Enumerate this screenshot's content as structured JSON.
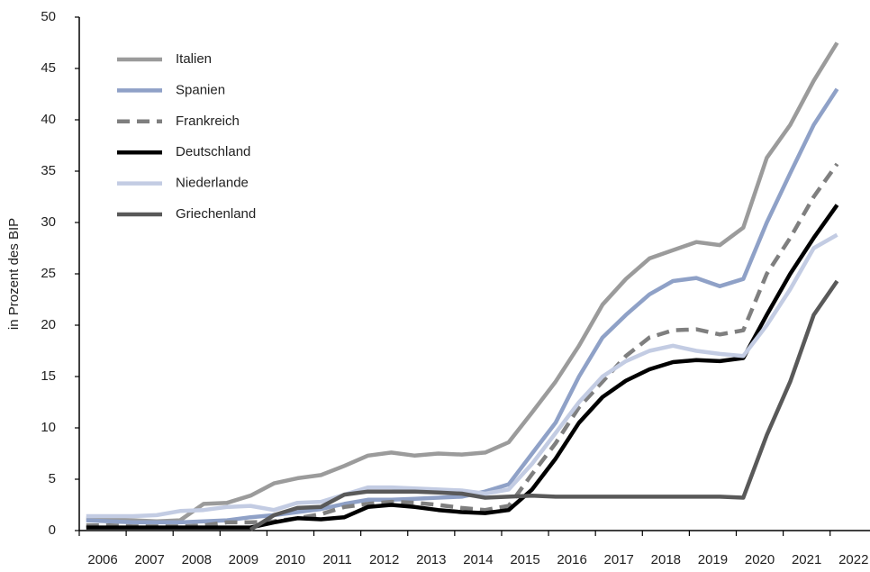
{
  "chart_data": {
    "type": "line",
    "y_label": "in Prozent des BIP",
    "x": [
      2006.15,
      2006.65,
      2007.15,
      2007.65,
      2008.15,
      2008.65,
      2009.15,
      2009.65,
      2010.15,
      2010.65,
      2011.15,
      2011.65,
      2012.15,
      2012.65,
      2013.15,
      2013.65,
      2014.15,
      2014.65,
      2015.15,
      2015.65,
      2016.15,
      2016.65,
      2017.15,
      2017.65,
      2018.15,
      2018.65,
      2019.15,
      2019.65,
      2020.15,
      2020.65,
      2021.15,
      2021.65,
      2022.15
    ],
    "xlim": [
      2006,
      2022.85
    ],
    "xticks": [
      2006,
      2007,
      2008,
      2009,
      2010,
      2011,
      2012,
      2013,
      2014,
      2015,
      2016,
      2017,
      2018,
      2019,
      2020,
      2021,
      2022
    ],
    "ylim": [
      0,
      50
    ],
    "yticks": [
      0,
      5,
      10,
      15,
      20,
      25,
      30,
      35,
      40,
      45,
      50
    ],
    "legend": "upper left",
    "series": [
      {
        "name": "Italien",
        "color": "#9b9b9b",
        "values": [
          1.2,
          1.1,
          1.0,
          0.9,
          1.0,
          2.6,
          2.7,
          3.4,
          4.6,
          5.1,
          5.4,
          6.3,
          7.3,
          7.6,
          7.3,
          7.5,
          7.4,
          7.6,
          8.6,
          11.5,
          14.5,
          18.0,
          22.0,
          24.5,
          26.5,
          27.3,
          28.1,
          27.8,
          29.5,
          36.3,
          39.5,
          43.8,
          47.5
        ]
      },
      {
        "name": "Spanien",
        "color": "#8fa1c7",
        "values": [
          1.0,
          0.9,
          0.8,
          0.8,
          0.8,
          0.9,
          1.0,
          1.3,
          1.5,
          1.8,
          2.1,
          2.6,
          3.0,
          3.0,
          3.1,
          3.2,
          3.3,
          3.8,
          4.5,
          7.5,
          10.5,
          15.0,
          18.8,
          21.0,
          23.0,
          24.3,
          24.6,
          23.8,
          24.5,
          30.0,
          34.8,
          39.5,
          43.0
        ]
      },
      {
        "name": "Frankreich",
        "color": "#7f7f7f",
        "line_style": "dashed",
        "values": [
          0.5,
          0.5,
          0.4,
          0.4,
          0.4,
          0.5,
          0.8,
          0.8,
          0.9,
          1.2,
          1.6,
          2.3,
          2.6,
          2.8,
          2.7,
          2.5,
          2.2,
          2.0,
          2.4,
          5.5,
          8.5,
          12.0,
          14.5,
          17.0,
          18.8,
          19.5,
          19.6,
          19.1,
          19.5,
          25.0,
          28.5,
          32.5,
          35.7
        ]
      },
      {
        "name": "Deutschland",
        "color": "#000000",
        "values": [
          0.3,
          0.3,
          0.3,
          0.3,
          0.3,
          0.3,
          0.3,
          0.3,
          0.8,
          1.2,
          1.1,
          1.3,
          2.3,
          2.5,
          2.3,
          2.0,
          1.8,
          1.7,
          2.0,
          4.0,
          7.0,
          10.5,
          13.0,
          14.6,
          15.7,
          16.4,
          16.6,
          16.5,
          16.8,
          21.0,
          25.0,
          28.5,
          31.7
        ]
      },
      {
        "name": "Niederlande",
        "color": "#c3cce3",
        "values": [
          1.4,
          1.4,
          1.4,
          1.5,
          1.9,
          2.0,
          2.3,
          2.4,
          2.0,
          2.7,
          2.8,
          3.5,
          4.2,
          4.2,
          4.1,
          4.0,
          3.9,
          3.6,
          4.0,
          6.5,
          9.5,
          12.5,
          15.0,
          16.5,
          17.5,
          18.0,
          17.5,
          17.2,
          17.0,
          20.0,
          23.5,
          27.5,
          28.8
        ]
      },
      {
        "name": "Griechenland",
        "color": "#595959",
        "values": [
          null,
          null,
          null,
          null,
          null,
          null,
          null,
          0.1,
          1.5,
          2.2,
          2.3,
          3.5,
          3.8,
          3.8,
          3.8,
          3.7,
          3.6,
          3.2,
          3.3,
          3.4,
          3.3,
          3.3,
          3.3,
          3.3,
          3.3,
          3.3,
          3.3,
          3.3,
          3.2,
          9.3,
          14.5,
          21.0,
          24.3
        ]
      }
    ]
  }
}
